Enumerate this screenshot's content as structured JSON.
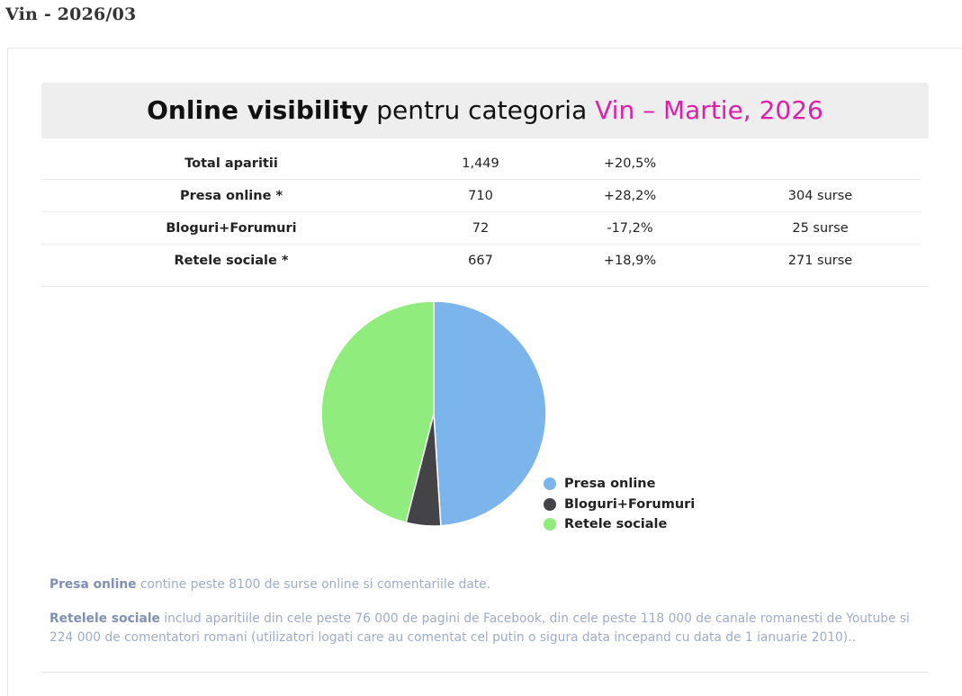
{
  "page": {
    "heading": "Vin - 2026/03"
  },
  "header": {
    "title_bold": "Online visibility",
    "title_mid": " pentru categoria ",
    "title_accent": "Vin – Martie, 2026"
  },
  "stats": {
    "rows": [
      {
        "label": "Total aparitii",
        "value": "1,449",
        "change": "+20,5%",
        "sources": ""
      },
      {
        "label": "Presa online *",
        "value": "710",
        "change": "+28,2%",
        "sources": "304 surse"
      },
      {
        "label": "Bloguri+Forumuri",
        "value": "72",
        "change": "-17,2%",
        "sources": "25 surse"
      },
      {
        "label": "Retele sociale *",
        "value": "667",
        "change": "+18,9%",
        "sources": "271 surse"
      }
    ]
  },
  "chart_data": {
    "type": "pie",
    "labels": [
      "Presa online",
      "Bloguri+Forumuri",
      "Retele sociale"
    ],
    "values": [
      710,
      72,
      667
    ],
    "colors": [
      "#7cb4ec",
      "#434348",
      "#90ed7d"
    ],
    "legend_position": "bottom-right"
  },
  "notes": {
    "presa_bold": "Presa online",
    "presa_text": " contine peste 8100 de surse online si comentariile date.",
    "retele_bold": "Retelele sociale",
    "retele_text": " includ aparitiile din cele peste 76 000 de pagini de Facebook, din cele peste 118 000 de canale romanesti de Youtube si 224 000 de comentatori romani (utilizatori logati care au comentat cel putin o sigura data incepand cu data de 1 ianuarie 2010).."
  }
}
